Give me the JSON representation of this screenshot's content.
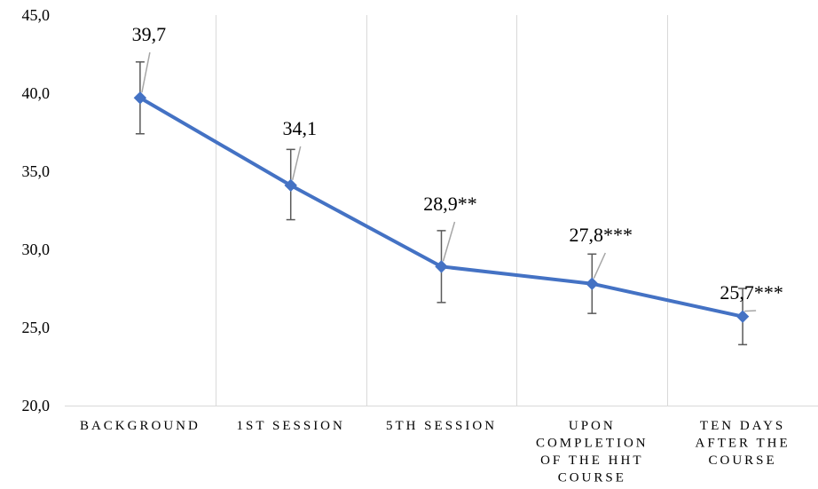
{
  "chart_data": {
    "type": "line",
    "categories": [
      [
        "BACKGROUND"
      ],
      [
        "1ST SESSION"
      ],
      [
        "5TH SESSION"
      ],
      [
        "UPON",
        "COMPLETION",
        "OF THE HHT",
        "COURSE"
      ],
      [
        "TEN DAYS",
        "AFTER THE",
        "COURSE"
      ]
    ],
    "series": [
      {
        "values": [
          39.7,
          34.1,
          28.9,
          27.8,
          25.7
        ],
        "error_low": [
          37.4,
          31.9,
          26.6,
          25.9,
          23.9
        ],
        "error_high": [
          42.0,
          36.4,
          31.2,
          29.7,
          27.5
        ],
        "data_labels": [
          "39,7",
          "34,1",
          "28,9**",
          "27,8***",
          "25,7***"
        ],
        "color": "#4472C4"
      }
    ],
    "y_tick_labels": [
      "20,0",
      "25,0",
      "30,0",
      "35,0",
      "40,0",
      "45,0"
    ],
    "y_ticks": [
      20,
      25,
      30,
      35,
      40,
      45
    ],
    "ylim": [
      20,
      45
    ],
    "title": "",
    "xlabel": "",
    "ylabel": "",
    "grid": "vertical",
    "gridline_color": "#D9D9D9",
    "leader_line_color": "#A6A6A6",
    "error_bar_color": "#595959"
  }
}
